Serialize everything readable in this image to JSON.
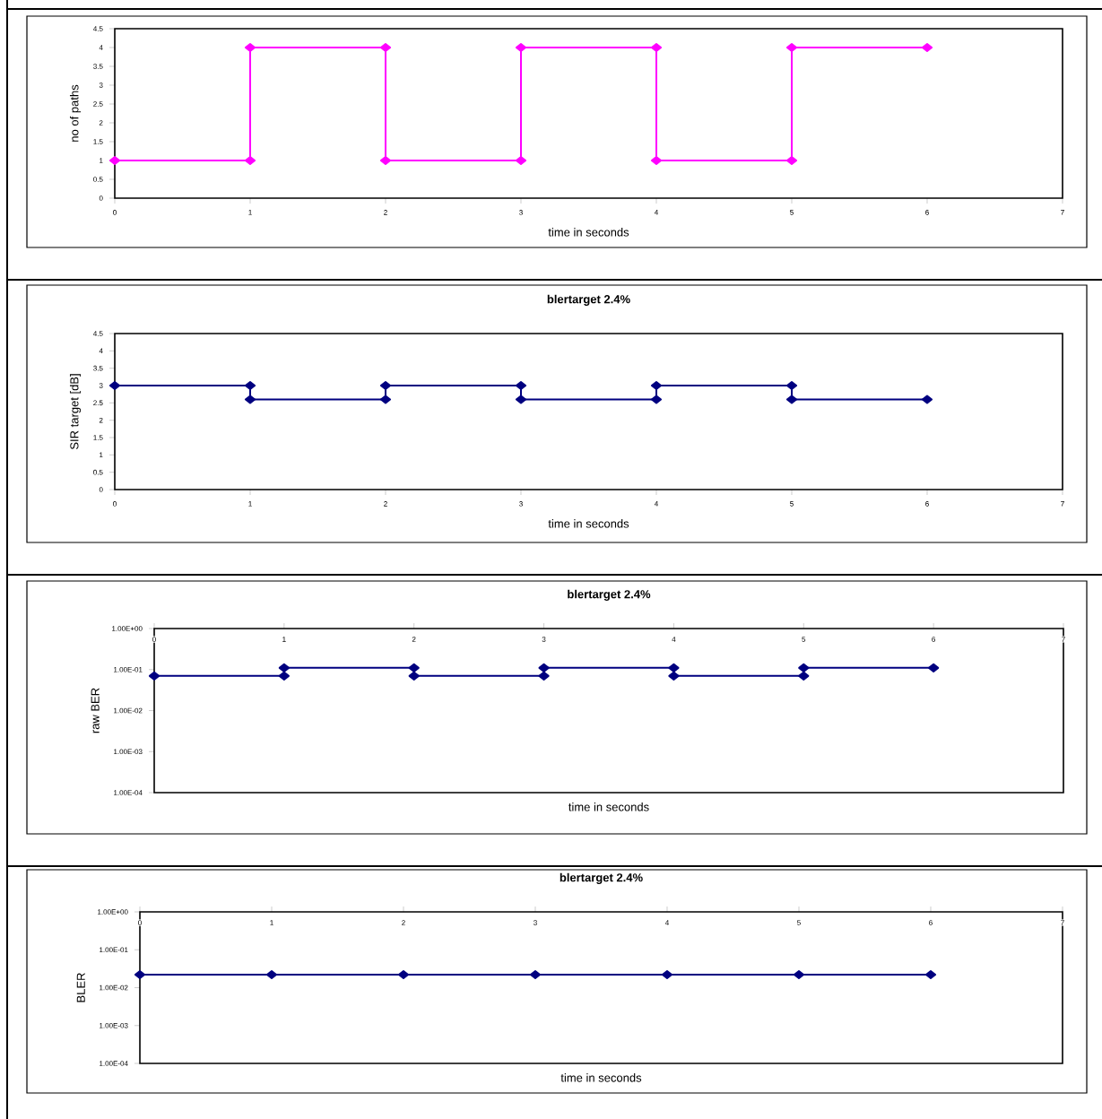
{
  "chart_data": [
    {
      "type": "line",
      "ylabel": "no of paths",
      "xlabel": "time in seconds",
      "color": "#ff00ff",
      "marker": "diamond",
      "x": [
        0,
        1,
        1,
        2,
        2,
        3,
        3,
        4,
        4,
        5,
        5,
        6
      ],
      "values": [
        1,
        1,
        4,
        4,
        1,
        1,
        4,
        4,
        1,
        1,
        4,
        4
      ],
      "xlim": [
        0,
        7
      ],
      "xticks": [
        0,
        1,
        2,
        3,
        4,
        5,
        6,
        7
      ],
      "ylim": [
        0,
        4.5
      ],
      "yticks": [
        0,
        0.5,
        1,
        1.5,
        2,
        2.5,
        3,
        3.5,
        4,
        4.5
      ]
    },
    {
      "type": "line",
      "title": "blertarget 2.4%",
      "ylabel": "SIR target [dB]",
      "xlabel": "time in seconds",
      "color": "#000080",
      "marker": "diamond",
      "x": [
        0,
        1,
        1,
        2,
        2,
        3,
        3,
        4,
        4,
        5,
        5,
        6
      ],
      "values": [
        3,
        3,
        2.6,
        2.6,
        3,
        3,
        2.6,
        2.6,
        3,
        3,
        2.6,
        2.6
      ],
      "xlim": [
        0,
        7
      ],
      "xticks": [
        0,
        1,
        2,
        3,
        4,
        5,
        6,
        7
      ],
      "ylim": [
        0,
        4.5
      ],
      "yticks": [
        0,
        0.5,
        1,
        1.5,
        2,
        2.5,
        3,
        3.5,
        4,
        4.5
      ]
    },
    {
      "type": "line",
      "title": "blertarget 2.4%",
      "ylabel": "raw BER",
      "xlabel": "time in seconds",
      "color": "#000080",
      "marker": "diamond",
      "log": true,
      "x": [
        0,
        1,
        1,
        2,
        2,
        3,
        3,
        4,
        4,
        5,
        5,
        6
      ],
      "values": [
        0.07,
        0.07,
        0.11,
        0.11,
        0.07,
        0.07,
        0.11,
        0.11,
        0.07,
        0.07,
        0.11,
        0.11
      ],
      "xlim": [
        0,
        7
      ],
      "xticks": [
        0,
        1,
        2,
        3,
        4,
        5,
        6,
        7
      ],
      "ylim": [
        0.0001,
        1
      ],
      "yticks": [
        {
          "value": 0.0001,
          "label": "1.00E-04"
        },
        {
          "value": 0.001,
          "label": "1.00E-03"
        },
        {
          "value": 0.01,
          "label": "1.00E-02"
        },
        {
          "value": 0.1,
          "label": "1.00E-01"
        },
        {
          "value": 1,
          "label": "1.00E+00"
        }
      ]
    },
    {
      "type": "line",
      "title": "blertarget 2.4%",
      "ylabel": "BLER",
      "xlabel": "time in seconds",
      "color": "#000080",
      "marker": "diamond",
      "log": true,
      "x": [
        0,
        1,
        2,
        3,
        4,
        5,
        6
      ],
      "values": [
        0.022,
        0.022,
        0.022,
        0.022,
        0.022,
        0.022,
        0.022
      ],
      "xlim": [
        0,
        7
      ],
      "xticks": [
        0,
        1,
        2,
        3,
        4,
        5,
        6,
        7
      ],
      "ylim": [
        0.0001,
        1
      ],
      "yticks": [
        {
          "value": 0.0001,
          "label": "1.00E-04"
        },
        {
          "value": 0.001,
          "label": "1.00E-03"
        },
        {
          "value": 0.01,
          "label": "1.00E-02"
        },
        {
          "value": 0.1,
          "label": "1.00E-01"
        },
        {
          "value": 1,
          "label": "1.00E+00"
        }
      ]
    }
  ]
}
